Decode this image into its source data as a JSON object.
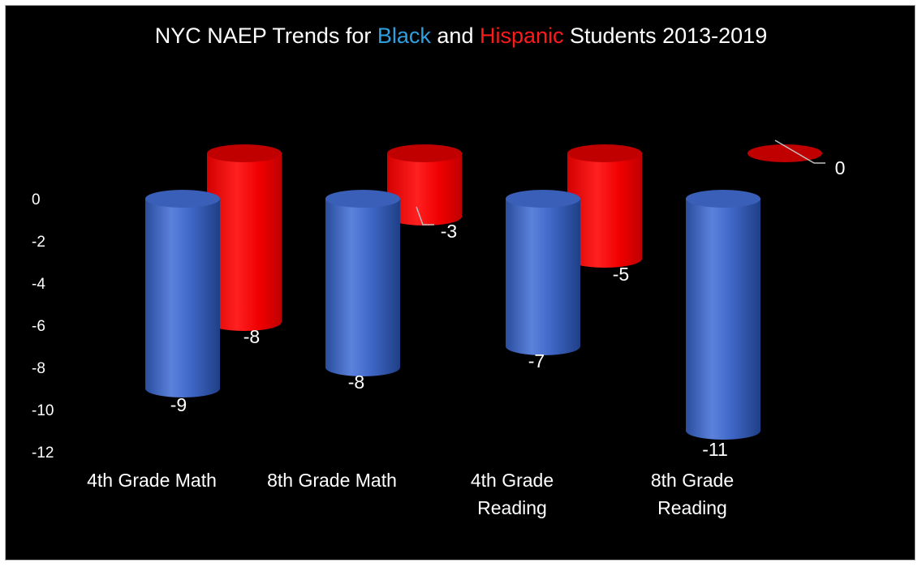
{
  "chart_data": {
    "type": "bar",
    "subtype": "3d-cylinder",
    "title": {
      "segments": [
        {
          "text": "NYC NAEP Trends for ",
          "color": "#ffffff"
        },
        {
          "text": "Black",
          "color": "#2f9fe0"
        },
        {
          "text": " and ",
          "color": "#ffffff"
        },
        {
          "text": "Hispanic",
          "color": "#ff1a1a"
        },
        {
          "text": " Students 2013-2019",
          "color": "#ffffff"
        }
      ]
    },
    "categories": [
      [
        "4th Grade Math"
      ],
      [
        "8th Grade Math"
      ],
      [
        "4th Grade",
        "Reading"
      ],
      [
        "8th Grade",
        "Reading"
      ]
    ],
    "series": [
      {
        "values": [
          -9,
          -8,
          -7,
          -11
        ],
        "color": "#3a64c4"
      },
      {
        "values": [
          -8,
          -3,
          -5,
          0
        ],
        "color": "#ff0000"
      }
    ],
    "data_labels": {
      "black": [
        "-9",
        "-8",
        "-7",
        "-11"
      ],
      "hispanic": [
        "-8",
        "-3",
        "-5",
        "0"
      ]
    },
    "yticks": [
      "0",
      "-2",
      "-4",
      "-6",
      "-8",
      "-10",
      "-12"
    ],
    "ytick_values": [
      0,
      -2,
      -4,
      -6,
      -8,
      -10,
      -12
    ],
    "ylim": [
      -12,
      0
    ],
    "background": "#000000",
    "grid": false,
    "legend": "none"
  }
}
